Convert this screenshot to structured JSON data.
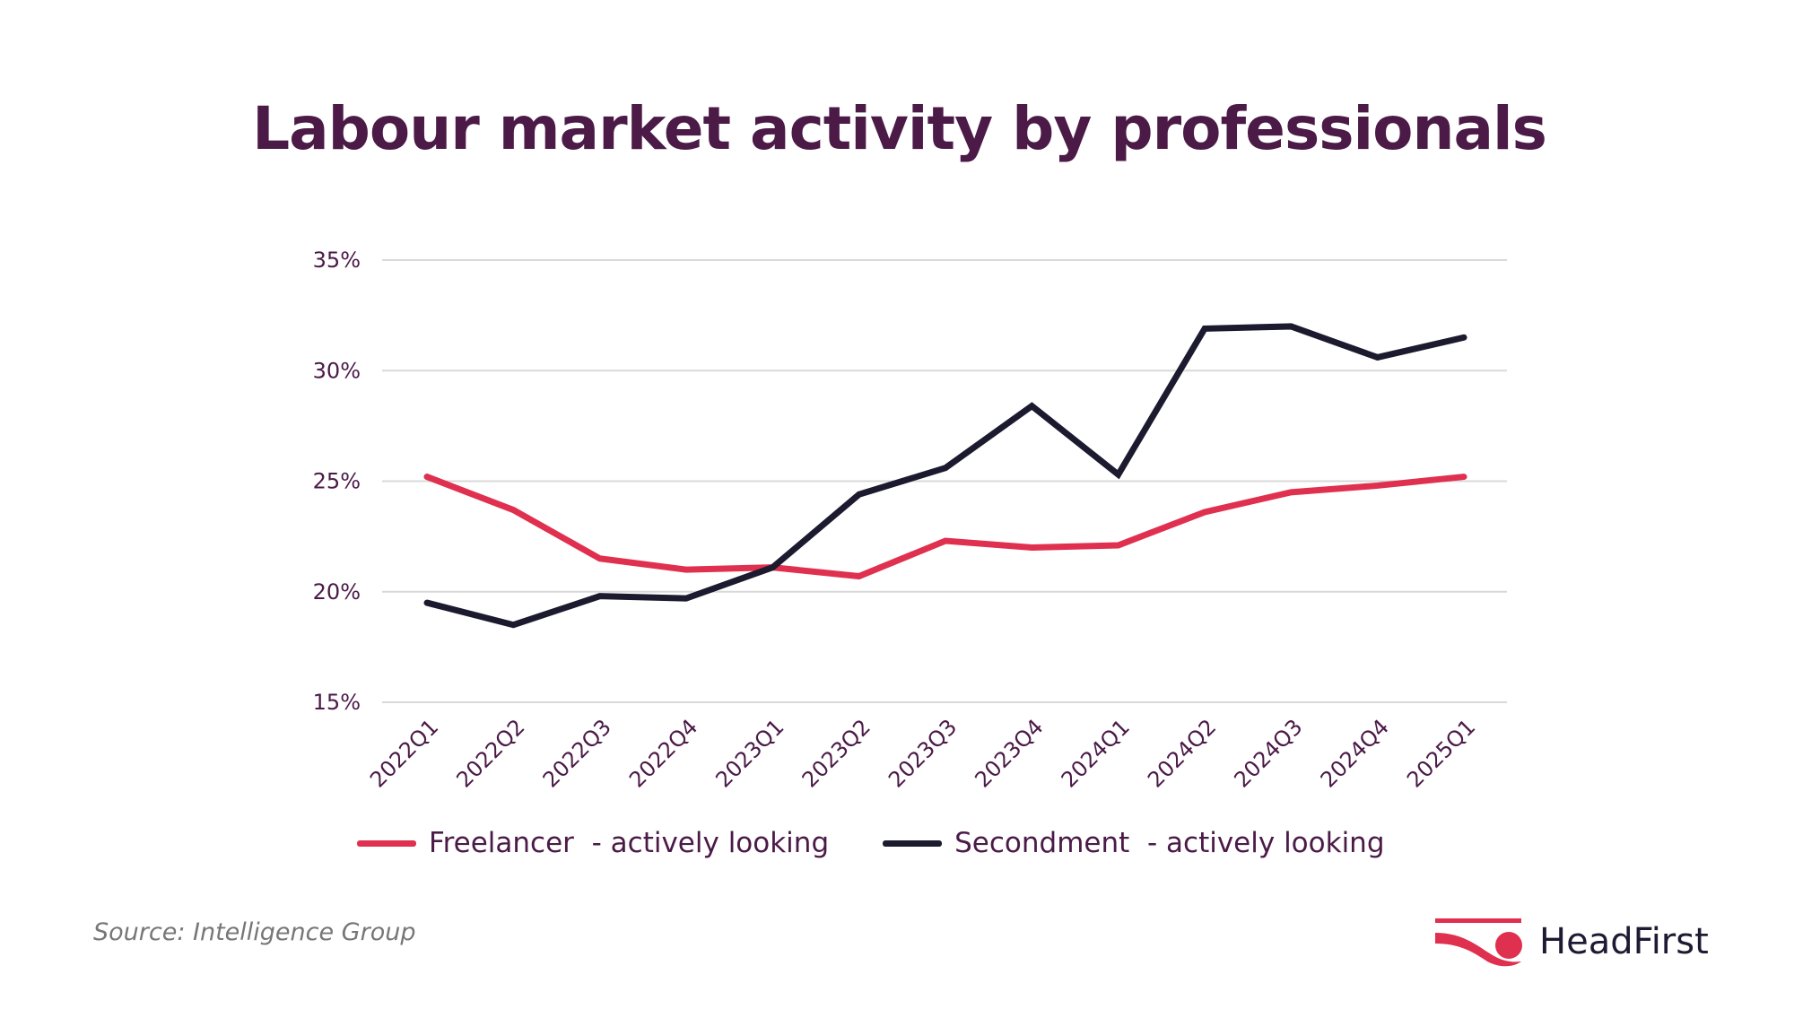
{
  "chart_data": {
    "type": "line",
    "title": "Labour market activity by professionals",
    "xlabel": "",
    "ylabel": "",
    "categories": [
      "2022Q1",
      "2022Q2",
      "2022Q3",
      "2022Q4",
      "2023Q1",
      "2023Q2",
      "2023Q3",
      "2023Q4",
      "2024Q1",
      "2024Q2",
      "2024Q3",
      "2024Q4",
      "2025Q1"
    ],
    "yticks": [
      15,
      20,
      25,
      30,
      35
    ],
    "ytick_labels": [
      "15%",
      "20%",
      "25%",
      "30%",
      "35%"
    ],
    "ylim": [
      15,
      35
    ],
    "grid": "horizontal",
    "legend_placement": "bottom",
    "series": [
      {
        "name": "Freelancer  - actively looking",
        "color": "#e0304f",
        "values": [
          25.2,
          23.7,
          21.5,
          21.0,
          21.1,
          20.7,
          22.3,
          22.0,
          22.1,
          23.6,
          24.5,
          24.8,
          25.2
        ]
      },
      {
        "name": "Secondment  - actively looking",
        "color": "#1c1a2e",
        "values": [
          19.5,
          18.5,
          19.8,
          19.7,
          21.1,
          24.4,
          25.6,
          28.4,
          25.3,
          31.9,
          32.0,
          30.6,
          31.5
        ]
      }
    ]
  },
  "source": "Source: Intelligence Group",
  "logo": {
    "text": "HeadFirst",
    "color": "#e0304f"
  }
}
